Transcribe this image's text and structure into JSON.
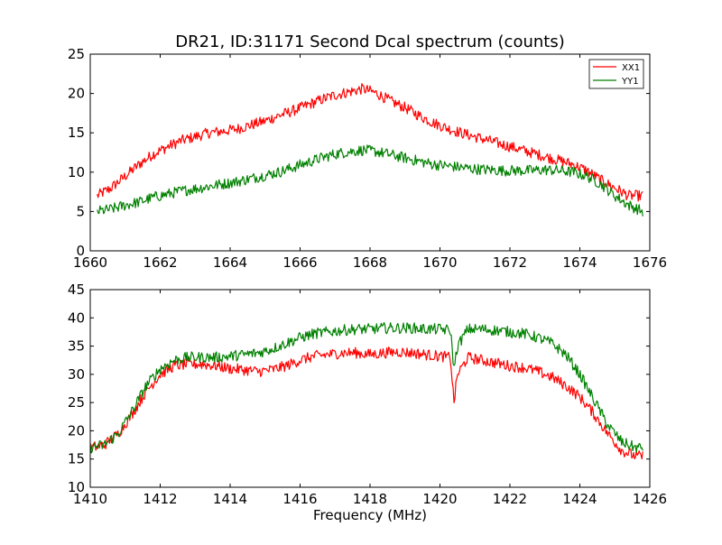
{
  "chart_data": [
    {
      "type": "line",
      "title": "DR21, ID:31171 Second Dcal spectrum (counts)",
      "xlabel": "",
      "ylabel": "",
      "xlim": [
        1660,
        1676
      ],
      "ylim": [
        0,
        25
      ],
      "xticks": [
        "1660",
        "1662",
        "1664",
        "1666",
        "1668",
        "1670",
        "1672",
        "1674",
        "1676"
      ],
      "yticks": [
        "0",
        "5",
        "10",
        "15",
        "20",
        "25"
      ],
      "grid": false,
      "legend": "top-right",
      "series": [
        {
          "name": "XX1",
          "color": "#ff0000",
          "x": [
            1660.2,
            1660.6,
            1661.0,
            1661.4,
            1661.8,
            1662.2,
            1662.6,
            1663.0,
            1663.4,
            1663.8,
            1664.2,
            1664.6,
            1665.0,
            1665.4,
            1665.8,
            1666.2,
            1666.6,
            1667.0,
            1667.4,
            1667.8,
            1668.2,
            1668.6,
            1669.0,
            1669.4,
            1669.8,
            1670.2,
            1670.6,
            1671.0,
            1671.4,
            1671.8,
            1672.2,
            1672.6,
            1673.0,
            1673.4,
            1673.8,
            1674.2,
            1674.6,
            1675.0,
            1675.4,
            1675.8
          ],
          "y": [
            7.0,
            8.0,
            9.5,
            11.0,
            12.3,
            13.2,
            14.0,
            14.5,
            15.0,
            15.2,
            15.5,
            16.0,
            16.5,
            17.2,
            17.8,
            18.5,
            19.2,
            19.8,
            20.2,
            20.6,
            20.0,
            19.0,
            18.2,
            17.2,
            16.3,
            15.6,
            15.0,
            14.5,
            14.0,
            13.5,
            13.0,
            12.5,
            12.0,
            11.5,
            11.0,
            10.2,
            9.0,
            8.0,
            7.0,
            7.0
          ]
        },
        {
          "name": "YY1",
          "color": "#008000",
          "x": [
            1660.2,
            1660.6,
            1661.0,
            1661.4,
            1661.8,
            1662.2,
            1662.6,
            1663.0,
            1663.4,
            1663.8,
            1664.2,
            1664.6,
            1665.0,
            1665.4,
            1665.8,
            1666.2,
            1666.6,
            1667.0,
            1667.4,
            1667.8,
            1668.2,
            1668.6,
            1669.0,
            1669.4,
            1669.8,
            1670.2,
            1670.6,
            1671.0,
            1671.4,
            1671.8,
            1672.2,
            1672.6,
            1673.0,
            1673.4,
            1673.8,
            1674.2,
            1674.6,
            1675.0,
            1675.4,
            1675.8
          ],
          "y": [
            5.0,
            5.3,
            5.8,
            6.2,
            6.8,
            7.2,
            7.6,
            7.9,
            8.2,
            8.5,
            8.8,
            9.2,
            9.6,
            10.0,
            10.6,
            11.2,
            11.8,
            12.3,
            12.6,
            12.8,
            12.6,
            12.2,
            11.8,
            11.4,
            11.0,
            10.8,
            10.6,
            10.4,
            10.3,
            10.2,
            10.2,
            10.2,
            10.3,
            10.2,
            10.0,
            9.5,
            8.5,
            7.0,
            5.8,
            5.0
          ]
        }
      ]
    },
    {
      "type": "line",
      "title": "",
      "xlabel": "Frequency (MHz)",
      "ylabel": "",
      "xlim": [
        1410,
        1426
      ],
      "ylim": [
        10,
        45
      ],
      "xticks": [
        "1410",
        "1412",
        "1414",
        "1416",
        "1418",
        "1420",
        "1422",
        "1424",
        "1426"
      ],
      "yticks": [
        "10",
        "15",
        "20",
        "25",
        "30",
        "35",
        "40",
        "45"
      ],
      "grid": false,
      "legend": "none",
      "series": [
        {
          "name": "XX1",
          "color": "#ff0000",
          "x": [
            1410.0,
            1410.4,
            1410.8,
            1411.2,
            1411.6,
            1412.0,
            1412.4,
            1412.8,
            1413.2,
            1413.6,
            1414.0,
            1414.4,
            1414.8,
            1415.2,
            1415.6,
            1416.0,
            1416.4,
            1416.8,
            1417.2,
            1417.6,
            1418.0,
            1418.4,
            1418.8,
            1419.2,
            1419.6,
            1420.0,
            1420.3,
            1420.4,
            1420.5,
            1420.8,
            1421.2,
            1421.6,
            1422.0,
            1422.4,
            1422.8,
            1423.2,
            1423.6,
            1424.0,
            1424.4,
            1424.8,
            1425.2,
            1425.6,
            1425.8
          ],
          "y": [
            17.0,
            17.5,
            19.5,
            23.0,
            27.0,
            30.0,
            31.5,
            31.8,
            31.8,
            31.5,
            31.0,
            30.8,
            30.5,
            30.8,
            31.5,
            32.5,
            33.2,
            33.5,
            33.8,
            33.8,
            33.5,
            33.8,
            34.0,
            33.8,
            33.5,
            33.2,
            33.0,
            25.0,
            30.0,
            33.0,
            32.5,
            32.0,
            31.5,
            31.2,
            30.5,
            29.5,
            28.0,
            26.0,
            23.0,
            19.5,
            16.5,
            15.5,
            15.5
          ]
        },
        {
          "name": "YY1",
          "color": "#008000",
          "x": [
            1410.0,
            1410.4,
            1410.8,
            1411.2,
            1411.6,
            1412.0,
            1412.4,
            1412.8,
            1413.2,
            1413.6,
            1414.0,
            1414.4,
            1414.8,
            1415.2,
            1415.6,
            1416.0,
            1416.4,
            1416.8,
            1417.2,
            1417.6,
            1418.0,
            1418.4,
            1418.8,
            1419.2,
            1419.6,
            1420.0,
            1420.3,
            1420.4,
            1420.5,
            1420.8,
            1421.2,
            1421.6,
            1422.0,
            1422.4,
            1422.8,
            1423.2,
            1423.6,
            1424.0,
            1424.4,
            1424.8,
            1425.2,
            1425.6,
            1425.8
          ],
          "y": [
            17.0,
            17.5,
            19.5,
            23.5,
            28.0,
            31.0,
            32.5,
            33.0,
            33.0,
            33.0,
            33.2,
            33.5,
            33.8,
            34.5,
            35.5,
            36.5,
            37.2,
            37.5,
            37.8,
            38.0,
            38.0,
            38.2,
            38.2,
            38.2,
            38.0,
            38.0,
            37.8,
            31.0,
            35.0,
            38.0,
            38.0,
            37.8,
            37.5,
            37.2,
            36.5,
            35.5,
            33.5,
            30.0,
            25.5,
            21.0,
            18.0,
            17.0,
            17.0
          ]
        }
      ]
    }
  ]
}
